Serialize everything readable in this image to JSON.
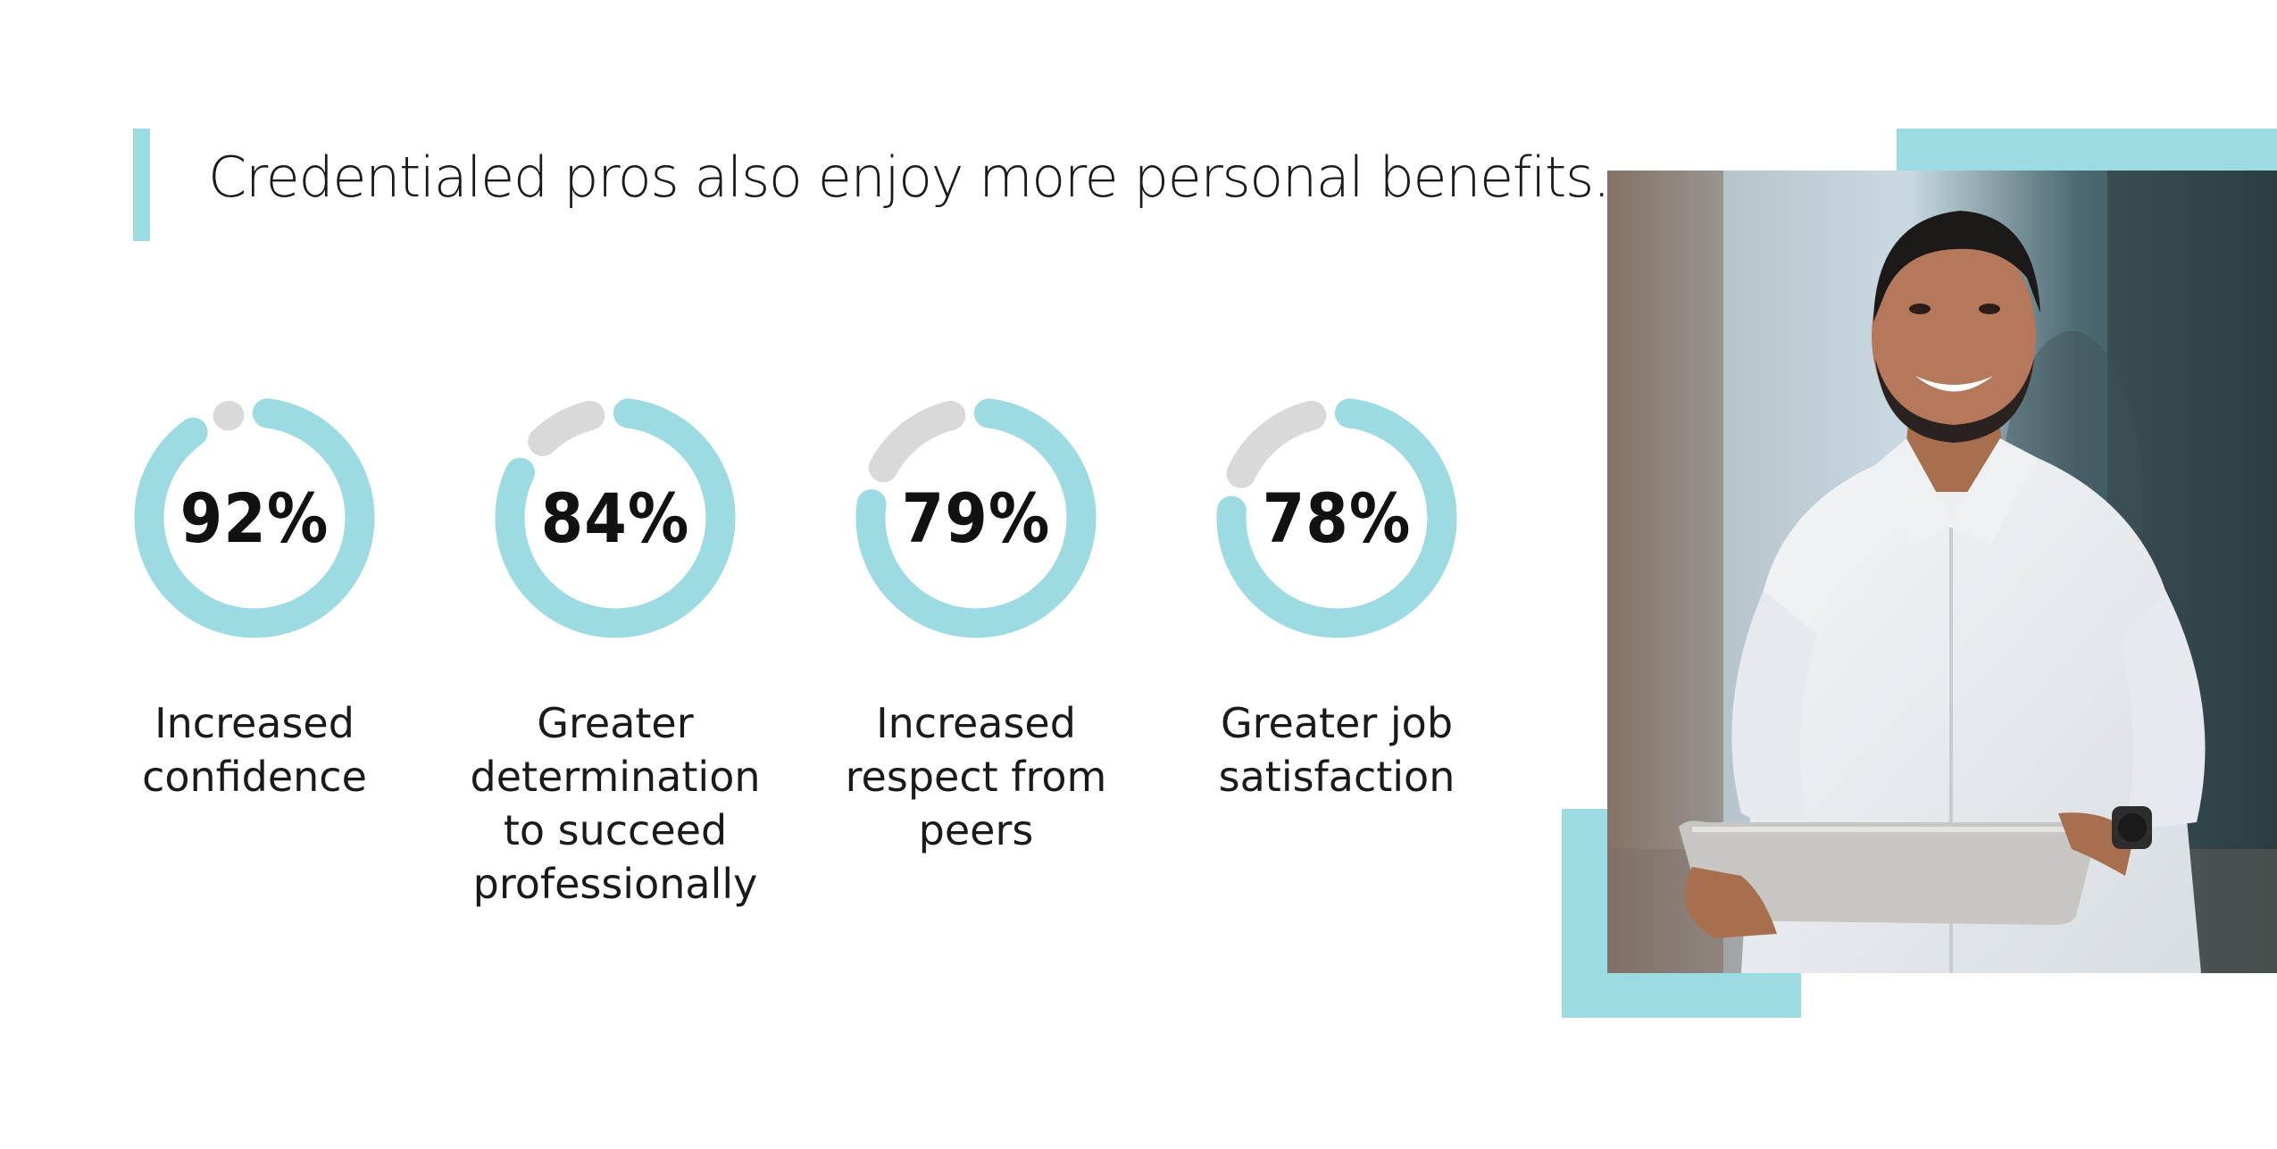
{
  "title": "Credentialed pros also enjoy more personal benefits.",
  "colors": {
    "accent": "#9cdbe2",
    "track": "#d9d9da",
    "text": "#111111"
  },
  "chart_data": {
    "type": "pie",
    "style": "donut-rings",
    "title": "",
    "unit": "%",
    "categories": [
      "Increased confidence",
      "Greater determination to succeed professionally",
      "Increased respect from peers",
      "Greater job satisfaction"
    ],
    "values": [
      92,
      84,
      79,
      78
    ],
    "display_values": [
      "92%",
      "84%",
      "79%",
      "78%"
    ],
    "max": 100
  },
  "photo": {
    "icon": "smiling-man-with-tablet-photo"
  }
}
